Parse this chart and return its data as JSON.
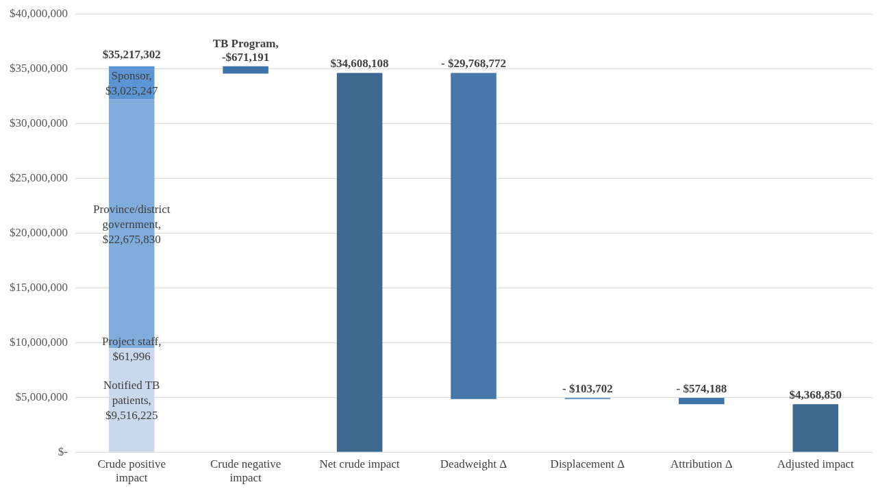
{
  "chart_data": {
    "type": "bar",
    "stacked": true,
    "grid": "y",
    "legend": false,
    "categories": [
      "Crude positive impact",
      "Crude negative impact",
      "Net crude impact",
      "Deadweight Δ",
      "Displacement Δ",
      "Attribution Δ",
      "Adjusted impact"
    ],
    "series": [
      {
        "color": "#c9d8ec",
        "values": [
          9516225,
          null,
          null,
          null,
          null,
          null,
          null
        ],
        "value_labels": [
          "Notified TB patients, $9,516,225",
          null,
          null,
          null,
          null,
          null,
          null
        ]
      },
      {
        "color": "#80acdb",
        "values": [
          22675830,
          null,
          null,
          null,
          null,
          null,
          null
        ],
        "value_labels": [
          "Province/district government, $22,675,830",
          null,
          null,
          null,
          null,
          null,
          null
        ]
      },
      {
        "color": "#5b95d3",
        "values": [
          3025247,
          null,
          null,
          null,
          null,
          null,
          null
        ],
        "value_labels": [
          "Sponsor, $3,025,247",
          null,
          null,
          null,
          null,
          null,
          null
        ]
      },
      {
        "colors": [
          null,
          "#3f74ab",
          "#3d6890",
          "#4679aa",
          "#5a90c2",
          "#3f72a6",
          "#3d6890"
        ],
        "values": [
          null,
          -671191,
          34608108,
          -29768772,
          -103702,
          -574188,
          4368850
        ],
        "base": [
          null,
          35217302,
          0,
          34608108,
          4943038,
          4943038,
          0
        ],
        "value_labels": [
          null,
          "TB Program, -$671,191",
          "$34,608,108",
          "- $29,768,772",
          "- $103,702",
          "- $574,188",
          "$4,368,850"
        ]
      }
    ],
    "totals": [
      "$35,217,302",
      null,
      null,
      null,
      null,
      null,
      null
    ],
    "annotations": [
      {
        "text": "Project staff, $61,996",
        "x": "Crude positive impact",
        "y": 9516225
      }
    ],
    "ylim": [
      0,
      40000000
    ],
    "yticks": [
      {
        "value": 0,
        "label": "$-"
      },
      {
        "value": 5000000,
        "label": "$5,000,000"
      },
      {
        "value": 10000000,
        "label": "$10,000,000"
      },
      {
        "value": 15000000,
        "label": "$15,000,000"
      },
      {
        "value": 20000000,
        "label": "$20,000,000"
      },
      {
        "value": 25000000,
        "label": "$25,000,000"
      },
      {
        "value": 30000000,
        "label": "$30,000,000"
      },
      {
        "value": 35000000,
        "label": "$35,000,000"
      },
      {
        "value": 40000000,
        "label": "$40,000,000"
      }
    ]
  }
}
